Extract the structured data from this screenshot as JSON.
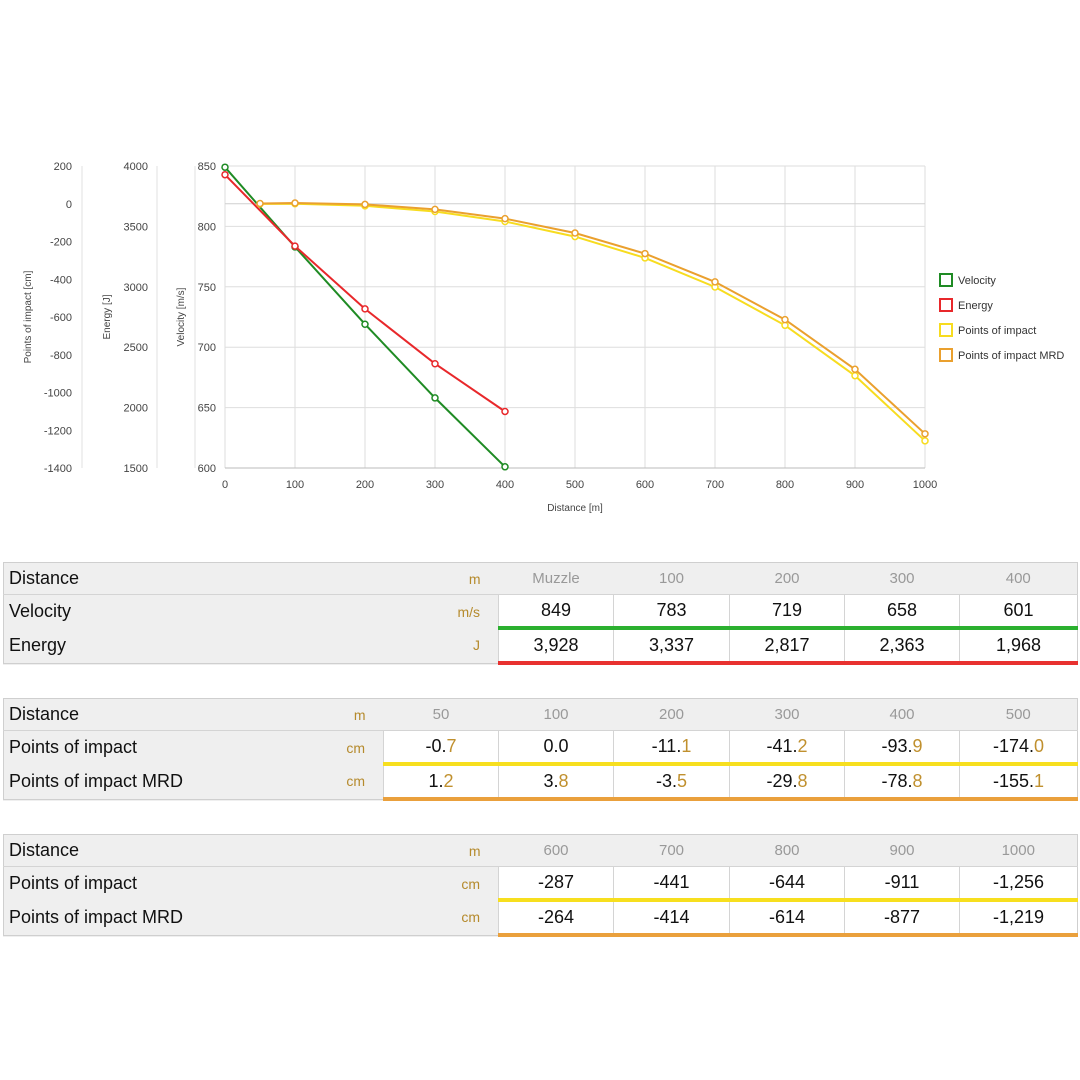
{
  "chart_data": {
    "type": "line",
    "xlabel": "Distance [m]",
    "xlim": [
      0,
      1000
    ],
    "xticks": [
      0,
      100,
      200,
      300,
      400,
      500,
      600,
      700,
      800,
      900,
      1000
    ],
    "axes": {
      "impact": {
        "label": "Points of impact [cm]",
        "range": [
          -1400,
          200
        ],
        "ticks": [
          200,
          0,
          -200,
          -400,
          -600,
          -800,
          -1000,
          -1200,
          -1400
        ]
      },
      "energy": {
        "label": "Energy [J]",
        "range": [
          1500,
          4000
        ],
        "ticks": [
          4000,
          3500,
          3000,
          2500,
          2000,
          1500
        ]
      },
      "velocity": {
        "label": "Velocity [m/s]",
        "range": [
          600,
          850
        ],
        "ticks": [
          850,
          800,
          750,
          700,
          650,
          600
        ]
      }
    },
    "grid": true,
    "legend_position": "right",
    "series": [
      {
        "name": "Velocity",
        "axis": "velocity",
        "color": "#1f8b24",
        "x": [
          0,
          100,
          200,
          300,
          400
        ],
        "y": [
          849,
          783,
          719,
          658,
          601
        ]
      },
      {
        "name": "Energy",
        "axis": "energy",
        "color": "#e8282b",
        "x": [
          0,
          100,
          200,
          300,
          400
        ],
        "y": [
          3928,
          3337,
          2817,
          2363,
          1968
        ]
      },
      {
        "name": "Points of impact",
        "axis": "impact",
        "color": "#f7dc1f",
        "x": [
          50,
          100,
          200,
          300,
          400,
          500,
          600,
          700,
          800,
          900,
          1000
        ],
        "y": [
          -0.7,
          0.0,
          -11.1,
          -41.2,
          -93.9,
          -174.0,
          -287,
          -441,
          -644,
          -911,
          -1256
        ]
      },
      {
        "name": "Points of impact MRD",
        "axis": "impact",
        "color": "#eaa02e",
        "x": [
          50,
          100,
          200,
          300,
          400,
          500,
          600,
          700,
          800,
          900,
          1000
        ],
        "y": [
          1.2,
          3.8,
          -3.5,
          -29.8,
          -78.8,
          -155.1,
          -264,
          -414,
          -614,
          -877,
          -1219
        ]
      }
    ]
  },
  "table1": {
    "distance_label": "Distance",
    "distance_unit": "m",
    "headers": [
      "Muzzle",
      "100",
      "200",
      "300",
      "400"
    ],
    "velocity_label": "Velocity",
    "velocity_unit": "m/s",
    "velocity": [
      "849",
      "783",
      "719",
      "658",
      "601"
    ],
    "energy_label": "Energy",
    "energy_unit": "J",
    "energy": [
      "3,928",
      "3,337",
      "2,817",
      "2,363",
      "1,968"
    ]
  },
  "table2": {
    "distance_label": "Distance",
    "distance_unit": "m",
    "headers": [
      "50",
      "100",
      "200",
      "300",
      "400",
      "500"
    ],
    "poi_label": "Points of impact",
    "poi_unit": "cm",
    "poi": [
      {
        "int": "-0.",
        "dec": "7"
      },
      {
        "int": "0.",
        "dec": "0"
      },
      {
        "int": "-11.",
        "dec": "1"
      },
      {
        "int": "-41.",
        "dec": "2"
      },
      {
        "int": "-93.",
        "dec": "9"
      },
      {
        "int": "-174.",
        "dec": "0"
      }
    ],
    "mrd_label": "Points of impact MRD",
    "mrd_unit": "cm",
    "mrd": [
      {
        "int": "1.",
        "dec": "2"
      },
      {
        "int": "3.",
        "dec": "8"
      },
      {
        "int": "-3.",
        "dec": "5"
      },
      {
        "int": "-29.",
        "dec": "8"
      },
      {
        "int": "-78.",
        "dec": "8"
      },
      {
        "int": "-155.",
        "dec": "1"
      }
    ]
  },
  "table3": {
    "distance_label": "Distance",
    "distance_unit": "m",
    "headers": [
      "600",
      "700",
      "800",
      "900",
      "1000"
    ],
    "poi_label": "Points of impact",
    "poi_unit": "cm",
    "poi": [
      "-287",
      "-441",
      "-644",
      "-911",
      "-1,256"
    ],
    "mrd_label": "Points of impact MRD",
    "mrd_unit": "cm",
    "mrd": [
      "-264",
      "-414",
      "-614",
      "-877",
      "-1,219"
    ]
  }
}
